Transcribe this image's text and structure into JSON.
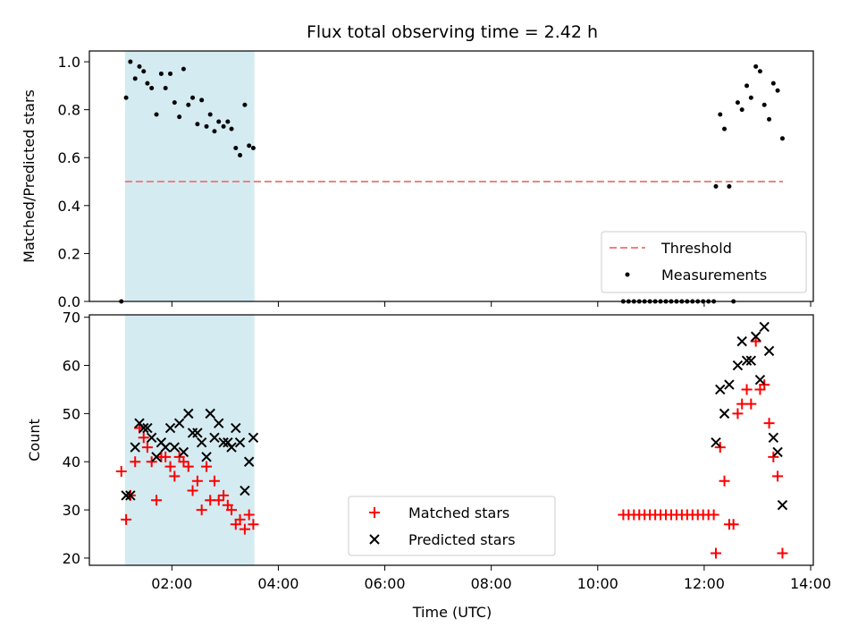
{
  "chart_data": {
    "title": "Flux total observing time = 2.42 h",
    "xlabel": "Time (UTC)",
    "x_unit": "hours",
    "xlim": [
      0.45,
      14.05
    ],
    "x_ticks": [
      {
        "value": 2,
        "label": "02:00"
      },
      {
        "value": 4,
        "label": "04:00"
      },
      {
        "value": 6,
        "label": "06:00"
      },
      {
        "value": 8,
        "label": "08:00"
      },
      {
        "value": 10,
        "label": "10:00"
      },
      {
        "value": 12,
        "label": "12:00"
      },
      {
        "value": 14,
        "label": "14:00"
      }
    ],
    "shaded_interval": {
      "x": [
        1.12,
        3.55
      ],
      "color": "#d4ebf1"
    },
    "panels": [
      {
        "type": "scatter",
        "ylabel": "Matched/Predicted stars",
        "ylim": [
          0,
          1.045
        ],
        "y_ticks": [
          0.0,
          0.2,
          0.4,
          0.6,
          0.8,
          1.0
        ],
        "y_tick_labels": [
          "0.0",
          "0.2",
          "0.4",
          "0.6",
          "0.8",
          "1.0"
        ],
        "legend": {
          "placement": "lower right",
          "entries": [
            "Threshold",
            "Measurements"
          ]
        },
        "threshold": {
          "name": "Threshold",
          "y": 0.5,
          "x": [
            1.12,
            13.48
          ],
          "color": "#f08080"
        },
        "series": [
          {
            "name": "Measurements",
            "color": "#000000",
            "marker": "dot",
            "x": [
              1.05,
              1.14,
              1.22,
              1.31,
              1.39,
              1.47,
              1.54,
              1.62,
              1.71,
              1.8,
              1.88,
              1.97,
              2.05,
              2.14,
              2.22,
              2.31,
              2.39,
              2.48,
              2.56,
              2.65,
              2.72,
              2.8,
              2.88,
              2.97,
              3.05,
              3.12,
              3.2,
              3.28,
              3.37,
              3.45,
              3.53,
              10.48,
              10.58,
              10.68,
              10.78,
              10.88,
              10.98,
              11.08,
              11.18,
              11.28,
              11.38,
              11.48,
              11.58,
              11.68,
              11.78,
              11.88,
              11.98,
              12.08,
              12.18,
              12.22,
              12.3,
              12.38,
              12.47,
              12.55,
              12.63,
              12.71,
              12.8,
              12.88,
              12.97,
              13.05,
              13.13,
              13.22,
              13.3,
              13.38,
              13.47
            ],
            "y": [
              0.0,
              0.85,
              1.0,
              0.93,
              0.98,
              0.96,
              0.91,
              0.89,
              0.78,
              0.95,
              0.89,
              0.95,
              0.83,
              0.77,
              0.97,
              0.82,
              0.85,
              0.74,
              0.84,
              0.73,
              0.78,
              0.71,
              0.75,
              0.73,
              0.75,
              0.72,
              0.64,
              0.61,
              0.82,
              0.65,
              0.64,
              0.0,
              0.0,
              0.0,
              0.0,
              0.0,
              0.0,
              0.0,
              0.0,
              0.0,
              0.0,
              0.0,
              0.0,
              0.0,
              0.0,
              0.0,
              0.0,
              0.0,
              0.0,
              0.48,
              0.78,
              0.72,
              0.48,
              0.0,
              0.83,
              0.8,
              0.9,
              0.85,
              0.98,
              0.96,
              0.82,
              0.76,
              0.91,
              0.88,
              0.68
            ]
          }
        ]
      },
      {
        "type": "scatter",
        "ylabel": "Count",
        "ylim": [
          18.5,
          70.5
        ],
        "y_ticks": [
          20,
          30,
          40,
          50,
          60,
          70
        ],
        "y_tick_labels": [
          "20",
          "30",
          "40",
          "50",
          "60",
          "70"
        ],
        "legend": {
          "placement": "lower center",
          "entries": [
            "Matched stars",
            "Predicted stars"
          ]
        },
        "series": [
          {
            "name": "Matched stars",
            "color": "#ff0000",
            "marker": "plus",
            "x": [
              1.05,
              1.14,
              1.22,
              1.31,
              1.39,
              1.47,
              1.54,
              1.62,
              1.71,
              1.8,
              1.88,
              1.97,
              2.05,
              2.14,
              2.22,
              2.31,
              2.39,
              2.48,
              2.56,
              2.65,
              2.72,
              2.8,
              2.88,
              2.97,
              3.05,
              3.12,
              3.2,
              3.28,
              3.37,
              3.45,
              3.53,
              10.48,
              10.58,
              10.68,
              10.78,
              10.88,
              10.98,
              11.08,
              11.18,
              11.28,
              11.38,
              11.48,
              11.58,
              11.68,
              11.78,
              11.88,
              11.98,
              12.08,
              12.18,
              12.22,
              12.3,
              12.38,
              12.47,
              12.55,
              12.63,
              12.71,
              12.8,
              12.88,
              12.97,
              13.05,
              13.13,
              13.22,
              13.3,
              13.38,
              13.47
            ],
            "y": [
              38,
              28,
              33,
              40,
              47,
              45,
              43,
              40,
              32,
              41,
              41,
              39,
              37,
              41,
              40,
              39,
              34,
              36,
              30,
              39,
              32,
              36,
              32,
              33,
              31,
              30,
              27,
              28,
              26,
              29,
              27,
              29,
              29,
              29,
              29,
              29,
              29,
              29,
              29,
              29,
              29,
              29,
              29,
              29,
              29,
              29,
              29,
              29,
              29,
              21,
              43,
              36,
              27,
              27,
              50,
              52,
              55,
              52,
              65,
              55,
              56,
              48,
              41,
              37,
              21
            ]
          },
          {
            "name": "Predicted stars",
            "color": "#000000",
            "marker": "x",
            "x": [
              1.14,
              1.22,
              1.31,
              1.39,
              1.47,
              1.54,
              1.62,
              1.71,
              1.8,
              1.88,
              1.97,
              2.05,
              2.14,
              2.22,
              2.31,
              2.39,
              2.48,
              2.56,
              2.65,
              2.72,
              2.8,
              2.88,
              2.97,
              3.05,
              3.12,
              3.2,
              3.28,
              3.37,
              3.45,
              3.53,
              12.22,
              12.3,
              12.38,
              12.47,
              12.63,
              12.71,
              12.8,
              12.88,
              12.97,
              13.05,
              13.13,
              13.22,
              13.3,
              13.38,
              13.47
            ],
            "y": [
              33,
              33,
              43,
              48,
              47,
              47,
              45,
              41,
              44,
              43,
              47,
              43,
              48,
              42,
              50,
              46,
              46,
              44,
              41,
              50,
              45,
              48,
              44,
              44,
              43,
              47,
              44,
              34,
              40,
              45,
              44,
              55,
              50,
              56,
              60,
              65,
              61,
              61,
              66,
              57,
              68,
              63,
              45,
              42,
              31
            ]
          }
        ]
      }
    ]
  }
}
